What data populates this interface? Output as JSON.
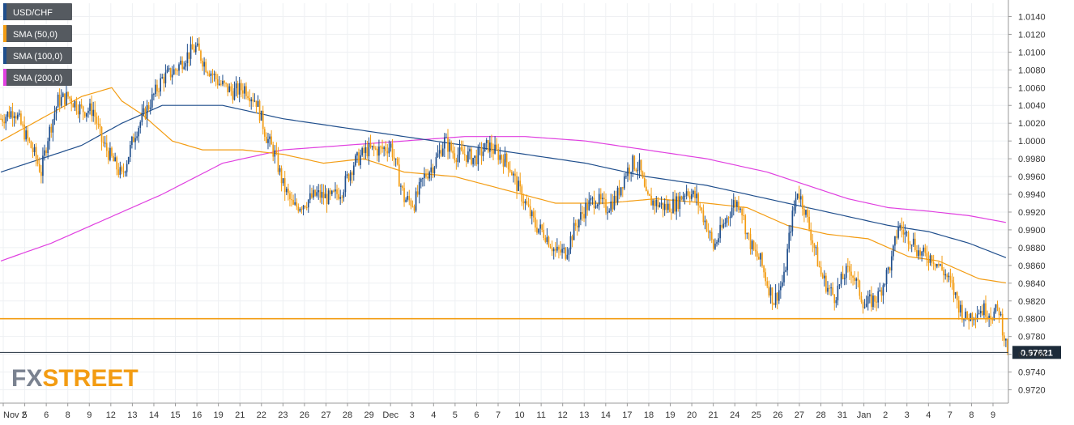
{
  "chart_data": {
    "type": "candlestick",
    "symbol": "USD/CHF",
    "ylim": [
      0.9705,
      1.0155
    ],
    "y_ticks": [
      "1.0140",
      "1.0120",
      "1.0100",
      "1.0080",
      "1.0060",
      "1.0040",
      "1.0020",
      "1.0000",
      "0.9980",
      "0.9960",
      "0.9940",
      "0.9920",
      "0.9900",
      "0.9880",
      "0.9860",
      "0.9840",
      "0.9820",
      "0.9800",
      "0.9780",
      "0.9760",
      "0.9740",
      "0.9720"
    ],
    "x_labels": [
      "Nov 2",
      "5",
      "6",
      "8",
      "9",
      "12",
      "13",
      "14",
      "15",
      "16",
      "19",
      "21",
      "22",
      "23",
      "26",
      "27",
      "28",
      "29",
      "Dec",
      "3",
      "4",
      "5",
      "6",
      "7",
      "10",
      "11",
      "12",
      "13",
      "14",
      "17",
      "18",
      "19",
      "20",
      "21",
      "24",
      "25",
      "26",
      "27",
      "28",
      "31",
      "Jan",
      "2",
      "3",
      "4",
      "7",
      "8",
      "9"
    ],
    "current_price": {
      "label": "0.97621",
      "value": 0.97621
    },
    "horizontal_levels": [
      {
        "value": 0.98,
        "color": "#f39c12"
      }
    ],
    "legend": [
      {
        "label": "USD/CHF",
        "color": "#1f4e8c"
      },
      {
        "label": "SMA (50,0)",
        "color": "#f39c12"
      },
      {
        "label": "SMA (100,0)",
        "color": "#1f4e8c"
      },
      {
        "label": "SMA (200,0)",
        "color": "#e040e0"
      }
    ],
    "colors": {
      "up": "#1f4e8c",
      "down": "#f39c12",
      "grid": "#eef0f3",
      "axis": "#333333",
      "price_box": "#1d2b3a"
    },
    "price_anchors": [
      [
        0,
        1.0025
      ],
      [
        8,
        1.0035
      ],
      [
        15,
        1.0005
      ],
      [
        20,
        0.9985
      ],
      [
        24,
        0.9965
      ],
      [
        28,
        1.0005
      ],
      [
        34,
        1.0045
      ],
      [
        40,
        1.005
      ],
      [
        48,
        1.0035
      ],
      [
        55,
        1.0035
      ],
      [
        60,
        1.0
      ],
      [
        66,
        0.998
      ],
      [
        72,
        0.996
      ],
      [
        80,
        1.001
      ],
      [
        88,
        1.004
      ],
      [
        96,
        1.007
      ],
      [
        104,
        1.008
      ],
      [
        110,
        1.0095
      ],
      [
        116,
        1.0105
      ],
      [
        122,
        1.0085
      ],
      [
        130,
        1.0065
      ],
      [
        138,
        1.0055
      ],
      [
        145,
        1.006
      ],
      [
        152,
        1.0045
      ],
      [
        158,
        1.0005
      ],
      [
        163,
        0.9985
      ],
      [
        168,
        0.995
      ],
      [
        174,
        0.9925
      ],
      [
        180,
        0.993
      ],
      [
        188,
        0.994
      ],
      [
        196,
        0.9935
      ],
      [
        203,
        0.9945
      ],
      [
        210,
        0.9975
      ],
      [
        218,
        0.999
      ],
      [
        226,
        0.999
      ],
      [
        232,
        0.9995
      ],
      [
        236,
        0.9965
      ],
      [
        240,
        0.9935
      ],
      [
        246,
        0.993
      ],
      [
        252,
        0.996
      ],
      [
        258,
        0.9975
      ],
      [
        264,
        1.0
      ],
      [
        270,
        0.9985
      ],
      [
        276,
        0.9985
      ],
      [
        282,
        0.998
      ],
      [
        290,
        0.9995
      ],
      [
        296,
        0.9985
      ],
      [
        302,
        0.9975
      ],
      [
        306,
        0.9955
      ],
      [
        312,
        0.993
      ],
      [
        318,
        0.9905
      ],
      [
        324,
        0.9895
      ],
      [
        330,
        0.9875
      ],
      [
        336,
        0.9875
      ],
      [
        342,
        0.9905
      ],
      [
        348,
        0.9925
      ],
      [
        354,
        0.9935
      ],
      [
        360,
        0.9925
      ],
      [
        366,
        0.9935
      ],
      [
        372,
        0.9965
      ],
      [
        376,
        0.9975
      ],
      [
        380,
        0.997
      ],
      [
        384,
        0.9935
      ],
      [
        390,
        0.993
      ],
      [
        396,
        0.9925
      ],
      [
        402,
        0.993
      ],
      [
        408,
        0.9945
      ],
      [
        414,
        0.9935
      ],
      [
        420,
        0.9905
      ],
      [
        424,
        0.988
      ],
      [
        430,
        0.9905
      ],
      [
        436,
        0.993
      ],
      [
        440,
        0.993
      ],
      [
        444,
        0.9895
      ],
      [
        448,
        0.9875
      ],
      [
        452,
        0.9865
      ],
      [
        456,
        0.984
      ],
      [
        460,
        0.982
      ],
      [
        466,
        0.9845
      ],
      [
        470,
        0.9905
      ],
      [
        474,
        0.9945
      ],
      [
        478,
        0.9925
      ],
      [
        484,
        0.988
      ],
      [
        488,
        0.985
      ],
      [
        492,
        0.9835
      ],
      [
        496,
        0.9825
      ],
      [
        502,
        0.985
      ],
      [
        506,
        0.9855
      ],
      [
        510,
        0.9835
      ],
      [
        514,
        0.9815
      ],
      [
        518,
        0.982
      ],
      [
        522,
        0.9825
      ],
      [
        526,
        0.9845
      ],
      [
        530,
        0.9865
      ],
      [
        534,
        0.9905
      ],
      [
        538,
        0.9895
      ],
      [
        542,
        0.989
      ],
      [
        546,
        0.9875
      ],
      [
        550,
        0.987
      ],
      [
        554,
        0.987
      ],
      [
        558,
        0.986
      ],
      [
        562,
        0.985
      ],
      [
        566,
        0.9835
      ],
      [
        570,
        0.9815
      ],
      [
        574,
        0.98
      ],
      [
        578,
        0.9805
      ],
      [
        582,
        0.981
      ],
      [
        586,
        0.981
      ],
      [
        590,
        0.9805
      ],
      [
        594,
        0.981
      ],
      [
        596,
        0.979
      ],
      [
        599,
        0.9762
      ]
    ],
    "sma50_anchors": [
      [
        0,
        1.0
      ],
      [
        24,
        1.0025
      ],
      [
        48,
        1.005
      ],
      [
        66,
        1.006
      ],
      [
        72,
        1.0045
      ],
      [
        84,
        1.003
      ],
      [
        102,
        1.0
      ],
      [
        120,
        0.999
      ],
      [
        144,
        0.999
      ],
      [
        168,
        0.9985
      ],
      [
        192,
        0.9975
      ],
      [
        216,
        0.998
      ],
      [
        240,
        0.9965
      ],
      [
        270,
        0.996
      ],
      [
        300,
        0.9945
      ],
      [
        330,
        0.993
      ],
      [
        360,
        0.993
      ],
      [
        390,
        0.9935
      ],
      [
        420,
        0.993
      ],
      [
        444,
        0.9925
      ],
      [
        468,
        0.9905
      ],
      [
        492,
        0.9895
      ],
      [
        516,
        0.989
      ],
      [
        540,
        0.987
      ],
      [
        558,
        0.9865
      ],
      [
        570,
        0.9855
      ],
      [
        582,
        0.9845
      ],
      [
        599,
        0.984
      ]
    ],
    "sma100_anchors": [
      [
        0,
        0.9965
      ],
      [
        24,
        0.998
      ],
      [
        48,
        0.9995
      ],
      [
        72,
        1.002
      ],
      [
        96,
        1.004
      ],
      [
        132,
        1.004
      ],
      [
        168,
        1.0025
      ],
      [
        204,
        1.0015
      ],
      [
        240,
        1.0005
      ],
      [
        276,
        0.9995
      ],
      [
        312,
        0.9985
      ],
      [
        348,
        0.9975
      ],
      [
        384,
        0.996
      ],
      [
        420,
        0.995
      ],
      [
        456,
        0.9935
      ],
      [
        492,
        0.992
      ],
      [
        528,
        0.9905
      ],
      [
        552,
        0.9898
      ],
      [
        576,
        0.9885
      ],
      [
        599,
        0.9868
      ]
    ],
    "sma200_anchors": [
      [
        0,
        0.9865
      ],
      [
        30,
        0.9885
      ],
      [
        60,
        0.991
      ],
      [
        96,
        0.994
      ],
      [
        132,
        0.9975
      ],
      [
        168,
        0.999
      ],
      [
        204,
        0.9995
      ],
      [
        240,
        1.0
      ],
      [
        276,
        1.0005
      ],
      [
        312,
        1.0005
      ],
      [
        348,
        1.0
      ],
      [
        384,
        0.999
      ],
      [
        420,
        0.998
      ],
      [
        456,
        0.9965
      ],
      [
        480,
        0.995
      ],
      [
        504,
        0.9935
      ],
      [
        528,
        0.9925
      ],
      [
        552,
        0.9921
      ],
      [
        576,
        0.9916
      ],
      [
        599,
        0.9908
      ]
    ]
  },
  "watermark": {
    "brand": "FXSTREET",
    "prefix": "FX",
    "suffix": "STREET"
  }
}
